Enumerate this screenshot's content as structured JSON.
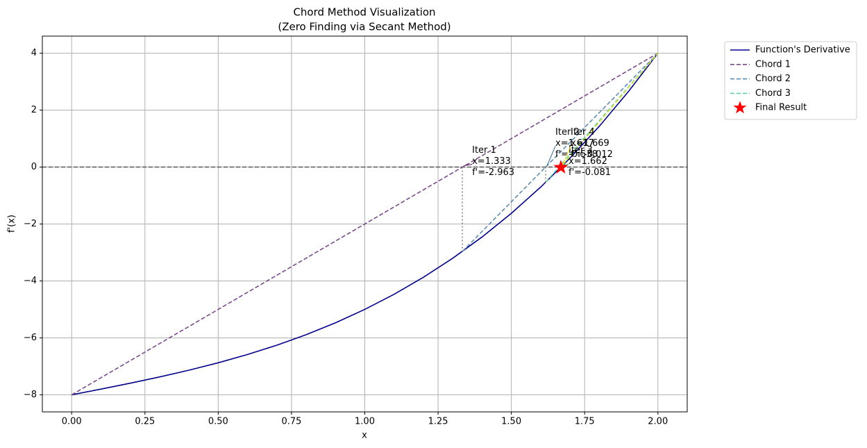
{
  "chart_data": {
    "type": "line",
    "title": [
      "Chord Method Visualization",
      "(Zero Finding via Secant Method)"
    ],
    "xlabel": "x",
    "ylabel": "f'(x)",
    "xlim": [
      -0.1,
      2.1
    ],
    "ylim": [
      -8.6,
      4.6
    ],
    "xticks": [
      {
        "value": 0,
        "label": "0.00"
      },
      {
        "value": 0.25,
        "label": "0.25"
      },
      {
        "value": 0.5,
        "label": "0.50"
      },
      {
        "value": 0.75,
        "label": "0.75"
      },
      {
        "value": 1,
        "label": "1.00"
      },
      {
        "value": 1.25,
        "label": "1.25"
      },
      {
        "value": 1.5,
        "label": "1.50"
      },
      {
        "value": 1.75,
        "label": "1.75"
      },
      {
        "value": 2,
        "label": "2.00"
      }
    ],
    "yticks": [
      {
        "value": -8,
        "label": "−8"
      },
      {
        "value": -6,
        "label": "−6"
      },
      {
        "value": -4,
        "label": "−4"
      },
      {
        "value": -2,
        "label": "−2"
      },
      0,
      2,
      4
    ],
    "grid": true,
    "hline": {
      "value": 0,
      "color": "#555555"
    },
    "legend": "outside-right",
    "series": [
      {
        "name": "Function's Derivative",
        "color": "#00008b",
        "dashed": false,
        "x": [
          0,
          0.1,
          0.2,
          0.3,
          0.4,
          0.5,
          0.6,
          0.7,
          0.8,
          0.9,
          1,
          1.1,
          1.2,
          1.3,
          1.4,
          1.5,
          1.6,
          1.7,
          1.8,
          1.9,
          2
        ],
        "values": [
          -8,
          -7.799,
          -7.592,
          -7.373,
          -7.136,
          -6.875,
          -6.584,
          -6.257,
          -5.888,
          -5.471,
          -5,
          -4.469,
          -3.872,
          -3.203,
          -2.456,
          -1.625,
          -0.704,
          0.313,
          1.432,
          2.659,
          4
        ]
      },
      {
        "name": "Chord 1",
        "color": "#7b4a8c",
        "dashed": true,
        "x": [
          0,
          2
        ],
        "values": [
          -8,
          4
        ]
      },
      {
        "name": "Chord 2",
        "color": "#5b8db3",
        "dashed": true,
        "x": [
          1.333,
          2
        ],
        "values": [
          -2.963,
          4
        ]
      },
      {
        "name": "Chord 3",
        "color": "#5ed1a6",
        "dashed": true,
        "x": [
          1.617,
          2
        ],
        "values": [
          -0.538,
          4
        ]
      },
      {
        "color": "#d9df2e",
        "dashed": true,
        "x": [
          1.662,
          2
        ],
        "values": [
          -0.081,
          4
        ]
      }
    ],
    "annotations": [
      {
        "x": 1.333,
        "y": -2.963,
        "color": "#440154",
        "lines": [
          "Iter 1",
          "x=1.333",
          "f'=-2.963"
        ]
      },
      {
        "x": 1.617,
        "y": -0.538,
        "color": "#31688e",
        "lines": [
          "Iter 2",
          "x=1.617",
          "f'=-0.538"
        ]
      },
      {
        "x": 1.662,
        "y": -0.081,
        "color": "#35b779",
        "lines": [
          "Iter 3",
          "x=1.662",
          "f'=-0.081"
        ]
      },
      {
        "x": 1.669,
        "y": -0.012,
        "color": "#fde725",
        "lines": [
          "Iter 4",
          "x=1.669",
          "f'=-0.012"
        ]
      }
    ],
    "final": {
      "name": "Final Result",
      "x": 1.669,
      "y": -0.012,
      "color": "#ff0000"
    }
  }
}
